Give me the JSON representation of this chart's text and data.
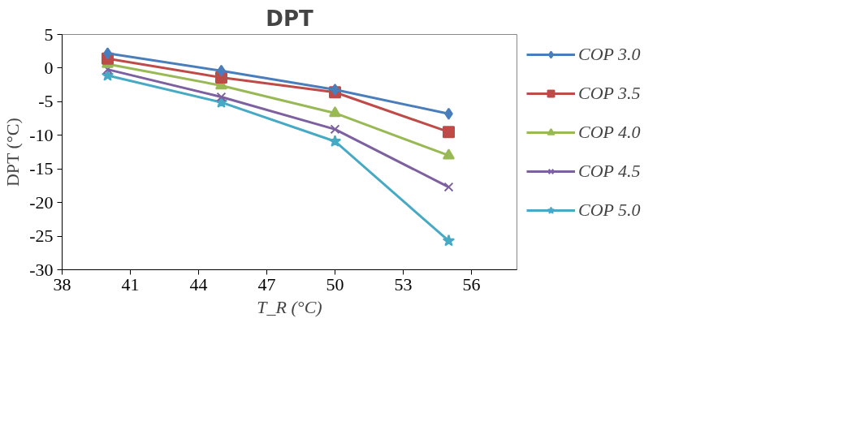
{
  "chart_data": {
    "type": "line",
    "title": "DPT",
    "xlabel": "T_R (°C)",
    "ylabel": "DPT (°C)",
    "x": [
      40,
      45,
      50,
      55
    ],
    "xlim": [
      38,
      58
    ],
    "xticks": [
      38,
      41,
      44,
      47,
      50,
      53,
      56
    ],
    "ylim": [
      -30,
      5
    ],
    "yticks": [
      -30,
      -25,
      -20,
      -15,
      -10,
      -5,
      0,
      5
    ],
    "grid": false,
    "legend": "right",
    "series": [
      {
        "name": "COP 3.0",
        "color": "#4a7ebb",
        "marker": "diamond",
        "values": [
          2.2,
          -0.4,
          -3.2,
          -6.8
        ]
      },
      {
        "name": "COP 3.5",
        "color": "#be4b48",
        "marker": "square",
        "values": [
          1.4,
          -1.4,
          -3.6,
          -9.5
        ]
      },
      {
        "name": "COP 4.0",
        "color": "#98b954",
        "marker": "triangle",
        "values": [
          0.6,
          -2.6,
          -6.7,
          -13.0
        ]
      },
      {
        "name": "COP 4.5",
        "color": "#7d60a0",
        "marker": "cross",
        "values": [
          -0.2,
          -4.3,
          -9.1,
          -17.7
        ]
      },
      {
        "name": "COP 5.0",
        "color": "#46aac5",
        "marker": "star",
        "values": [
          -1.1,
          -5.1,
          -10.9,
          -25.7
        ]
      }
    ]
  }
}
